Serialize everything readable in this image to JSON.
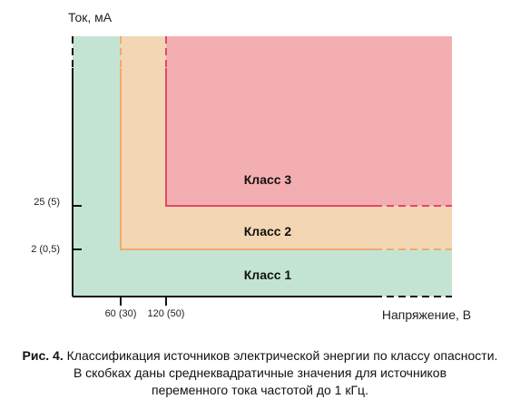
{
  "axes": {
    "y_title": "Ток, мА",
    "x_title": "Напряжение, В",
    "y_ticks": [
      "25 (5)",
      "2 (0,5)"
    ],
    "x_ticks": [
      "60 (30)",
      "120 (50)"
    ]
  },
  "regions": [
    "Класс 3",
    "Класс 2",
    "Класс 1"
  ],
  "caption": {
    "label": "Рис. 4.",
    "lines": [
      "Классификация источников электрической энергии по классу опасности.",
      "В скобках даны среднеквадратичные значения для источников",
      "переменного тока частотой до 1 кГц."
    ]
  }
}
